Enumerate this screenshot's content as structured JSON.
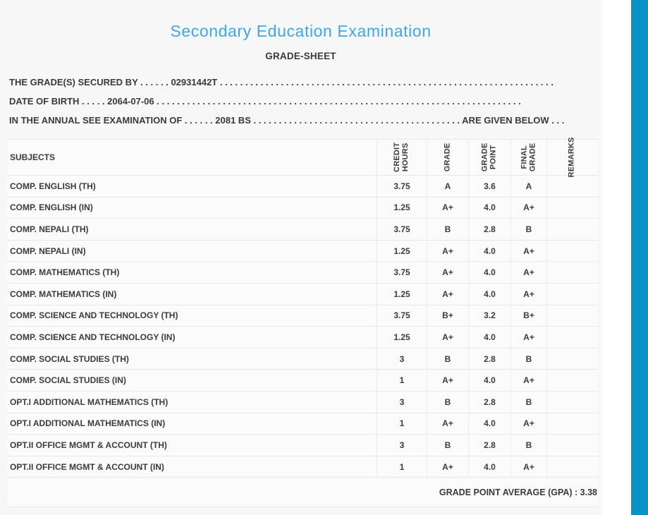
{
  "header": {
    "title": "Secondary Education Examination",
    "subtitle": "GRADE-SHEET"
  },
  "info_lines": [
    "THE GRADE(S) SECURED BY . . . . . . 02931442T . . . . . . . . . . . . . . . . . . . . . . . . . . . . . . . . . . . . . . . . . . . . . . . . . . . . . . . . . . . . . . . . . .",
    "DATE OF BIRTH . . . . . 2064-07-06 . . . . . . . . . . . . . . . . . . . . . . . . . . . . . . . . . . . . . . . . . . . . . . . . . . . . . . . . . . . . . . . . . . . . . . . .",
    "IN THE ANNUAL SEE EXAMINATION OF . . . . . . 2081 BS . . . . . . . . . . . . . . . . . . . . . . . . . . . . . . . . . . . . . . . . . ARE GIVEN BELOW . . ."
  ],
  "table": {
    "columns": [
      "SUBJECTS",
      "CREDIT\nHOURS",
      "GRADE",
      "GRADE\nPOINT",
      "FINAL\nGRADE",
      "REMARKS"
    ],
    "rows": [
      {
        "subject": "COMP. ENGLISH (TH)",
        "credit_hours": "3.75",
        "grade": "A",
        "grade_point": "3.6",
        "final_grade": "A",
        "remarks": ""
      },
      {
        "subject": "COMP. ENGLISH (IN)",
        "credit_hours": "1.25",
        "grade": "A+",
        "grade_point": "4.0",
        "final_grade": "A+",
        "remarks": ""
      },
      {
        "subject": "COMP. NEPALI (TH)",
        "credit_hours": "3.75",
        "grade": "B",
        "grade_point": "2.8",
        "final_grade": "B",
        "remarks": ""
      },
      {
        "subject": "COMP. NEPALI (IN)",
        "credit_hours": "1.25",
        "grade": "A+",
        "grade_point": "4.0",
        "final_grade": "A+",
        "remarks": ""
      },
      {
        "subject": "COMP. MATHEMATICS (TH)",
        "credit_hours": "3.75",
        "grade": "A+",
        "grade_point": "4.0",
        "final_grade": "A+",
        "remarks": ""
      },
      {
        "subject": "COMP. MATHEMATICS (IN)",
        "credit_hours": "1.25",
        "grade": "A+",
        "grade_point": "4.0",
        "final_grade": "A+",
        "remarks": ""
      },
      {
        "subject": "COMP. SCIENCE AND TECHNOLOGY (TH)",
        "credit_hours": "3.75",
        "grade": "B+",
        "grade_point": "3.2",
        "final_grade": "B+",
        "remarks": ""
      },
      {
        "subject": "COMP. SCIENCE AND TECHNOLOGY (IN)",
        "credit_hours": "1.25",
        "grade": "A+",
        "grade_point": "4.0",
        "final_grade": "A+",
        "remarks": ""
      },
      {
        "subject": "COMP. SOCIAL STUDIES (TH)",
        "credit_hours": "3",
        "grade": "B",
        "grade_point": "2.8",
        "final_grade": "B",
        "remarks": ""
      },
      {
        "subject": "COMP. SOCIAL STUDIES (IN)",
        "credit_hours": "1",
        "grade": "A+",
        "grade_point": "4.0",
        "final_grade": "A+",
        "remarks": ""
      },
      {
        "subject": "OPT.I ADDITIONAL MATHEMATICS (TH)",
        "credit_hours": "3",
        "grade": "B",
        "grade_point": "2.8",
        "final_grade": "B",
        "remarks": ""
      },
      {
        "subject": "OPT.I ADDITIONAL MATHEMATICS (IN)",
        "credit_hours": "1",
        "grade": "A+",
        "grade_point": "4.0",
        "final_grade": "A+",
        "remarks": ""
      },
      {
        "subject": "OPT.II OFFICE MGMT & ACCOUNT (TH)",
        "credit_hours": "3",
        "grade": "B",
        "grade_point": "2.8",
        "final_grade": "B",
        "remarks": ""
      },
      {
        "subject": "OPT.II OFFICE MGMT & ACCOUNT (IN)",
        "credit_hours": "1",
        "grade": "A+",
        "grade_point": "4.0",
        "final_grade": "A+",
        "remarks": ""
      }
    ]
  },
  "footer": {
    "gpa_text": "GRADE POINT AVERAGE (GPA) : 3.38"
  },
  "colors": {
    "title_blue": "#3fa7e3",
    "accent_bar_blue": "#0793c8",
    "text_dark": "#3b3b3b",
    "page_background": "#f7f7f7",
    "table_background": "#fbfbfb",
    "border_gray": "#e7e7e7"
  }
}
